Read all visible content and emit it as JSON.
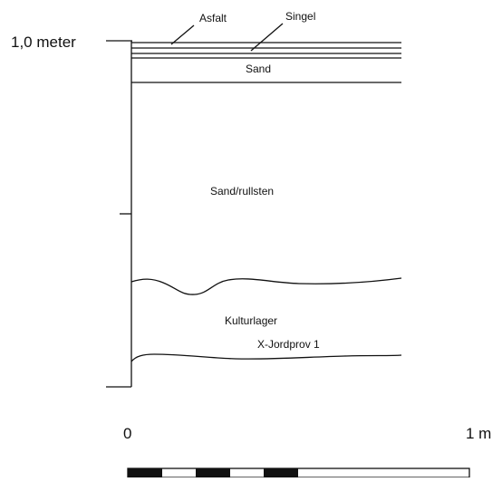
{
  "diagram": {
    "depth_label": "1,0 meter",
    "layers": {
      "asfalt": "Asfalt",
      "singel": "Singel",
      "sand": "Sand",
      "sand_rullsten": "Sand/rullsten",
      "kulturlager": "Kulturlager",
      "jordprov": "X-Jordprov 1"
    }
  },
  "scale": {
    "start_label": "0",
    "end_label": "1 m"
  },
  "colors": {
    "ink": "#111111",
    "background": "#ffffff"
  }
}
